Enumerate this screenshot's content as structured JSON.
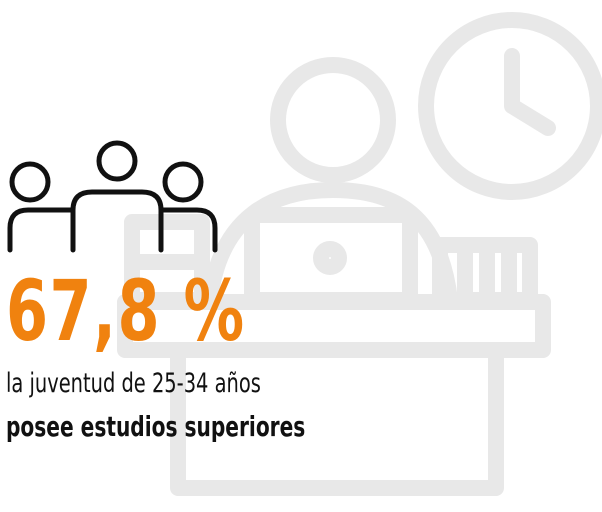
{
  "stat": "67,8 %",
  "caption": {
    "line1": "la juventud de 25-34 años",
    "line2": "posee estudios superiores"
  }
}
